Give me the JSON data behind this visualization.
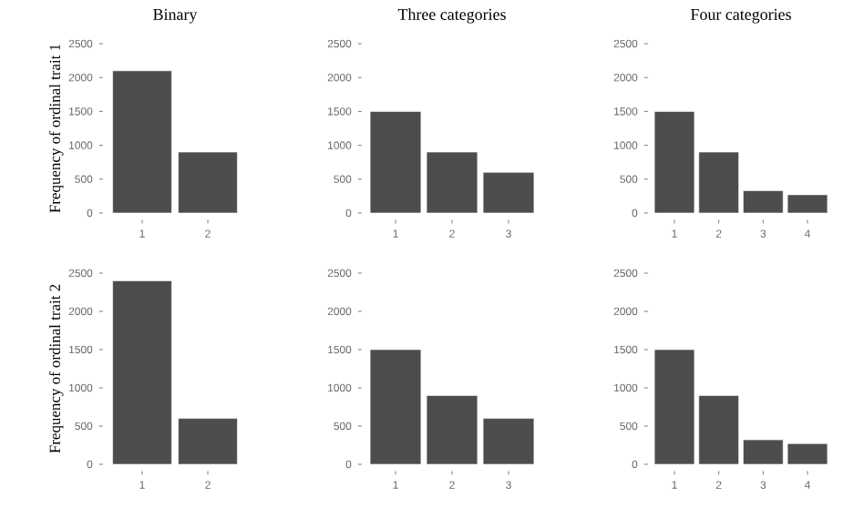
{
  "chart_data": [
    {
      "type": "bar",
      "title": "Binary",
      "ylabel": "Frequency of ordinal trait 1",
      "categories": [
        "1",
        "2"
      ],
      "values": [
        2100,
        900
      ],
      "color": "#4d4d4d",
      "ylim": [
        0,
        2500
      ],
      "yticks": [
        0,
        500,
        1000,
        1500,
        2000,
        2500
      ],
      "grid": false
    },
    {
      "type": "bar",
      "title": "Three categories",
      "categories": [
        "1",
        "2",
        "3"
      ],
      "values": [
        1500,
        900,
        600
      ],
      "color": "#4d4d4d",
      "ylim": [
        0,
        2500
      ],
      "yticks": [
        0,
        500,
        1000,
        1500,
        2000,
        2500
      ],
      "grid": false
    },
    {
      "type": "bar",
      "title": "Four categories",
      "categories": [
        "1",
        "2",
        "3",
        "4"
      ],
      "values": [
        1500,
        900,
        330,
        270
      ],
      "color": "#4d4d4d",
      "ylim": [
        0,
        2500
      ],
      "yticks": [
        0,
        500,
        1000,
        1500,
        2000,
        2500
      ],
      "grid": false
    },
    {
      "type": "bar",
      "ylabel": "Frequency of ordinal trait 2",
      "categories": [
        "1",
        "2"
      ],
      "values": [
        2400,
        600
      ],
      "color": "#4d4d4d",
      "ylim": [
        0,
        2500
      ],
      "yticks": [
        0,
        500,
        1000,
        1500,
        2000,
        2500
      ],
      "grid": false
    },
    {
      "type": "bar",
      "categories": [
        "1",
        "2",
        "3"
      ],
      "values": [
        1500,
        900,
        600
      ],
      "color": "#4d4d4d",
      "ylim": [
        0,
        2500
      ],
      "yticks": [
        0,
        500,
        1000,
        1500,
        2000,
        2500
      ],
      "grid": false
    },
    {
      "type": "bar",
      "categories": [
        "1",
        "2",
        "3",
        "4"
      ],
      "values": [
        1500,
        900,
        320,
        270
      ],
      "color": "#4d4d4d",
      "ylim": [
        0,
        2500
      ],
      "yticks": [
        0,
        500,
        1000,
        1500,
        2000,
        2500
      ],
      "grid": false
    }
  ]
}
